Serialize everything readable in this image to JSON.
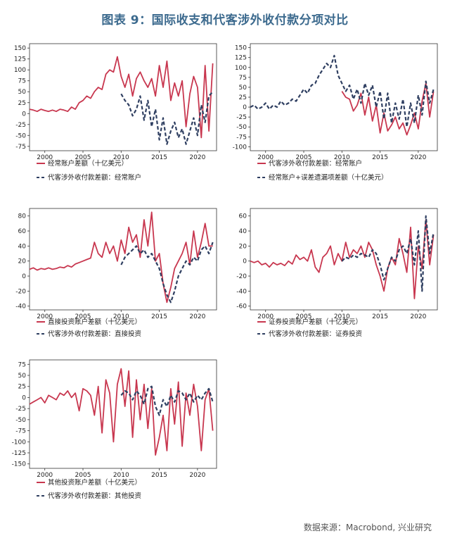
{
  "title": "图表 9：国际收支和代客涉外收付款分项对比",
  "source": "数据来源：Macrobond, 兴业研究",
  "colors": {
    "primary": "#c8374f",
    "secondary": "#2f3f61",
    "title": "#3c6a8e"
  },
  "chart_data": [
    {
      "type": "line",
      "id": "current-account",
      "ylim": [
        -85,
        160
      ],
      "yticks": [
        -75,
        -50,
        -25,
        0,
        25,
        50,
        75,
        100,
        125,
        150
      ],
      "xlim": [
        1998,
        2022.5
      ],
      "xticks": [
        2000,
        2005,
        2010,
        2015,
        2020
      ],
      "series": [
        {
          "name": "经常账户差额（十亿美元）",
          "style": "solid",
          "x": [
            1998,
            1998.5,
            1999,
            1999.5,
            2000,
            2000.5,
            2001,
            2001.5,
            2002,
            2002.5,
            2003,
            2003.5,
            2004,
            2004.5,
            2005,
            2005.5,
            2006,
            2006.5,
            2007,
            2007.5,
            2008,
            2008.5,
            2009,
            2009.5,
            2010,
            2010.5,
            2011,
            2011.5,
            2012,
            2012.5,
            2013,
            2013.5,
            2014,
            2014.5,
            2015,
            2015.5,
            2016,
            2016.5,
            2017,
            2017.5,
            2018,
            2018.5,
            2019,
            2019.5,
            2020,
            2020.5,
            2021,
            2021.5,
            2022
          ],
          "y": [
            10,
            8,
            5,
            10,
            7,
            5,
            8,
            5,
            10,
            8,
            5,
            15,
            10,
            25,
            30,
            40,
            35,
            50,
            60,
            55,
            90,
            100,
            95,
            130,
            85,
            60,
            90,
            40,
            80,
            95,
            75,
            60,
            80,
            40,
            110,
            60,
            120,
            30,
            70,
            40,
            75,
            -30,
            45,
            85,
            60,
            -55,
            110,
            -40,
            115
          ]
        },
        {
          "name": "代客涉外收付款差额：经常账户",
          "style": "dash",
          "x": [
            2010,
            2010.5,
            2011,
            2011.5,
            2012,
            2012.5,
            2013,
            2013.5,
            2014,
            2014.5,
            2015,
            2015.5,
            2016,
            2016.5,
            2017,
            2017.5,
            2018,
            2018.5,
            2019,
            2019.5,
            2020,
            2020.5,
            2021,
            2021.5,
            2022
          ],
          "y": [
            45,
            30,
            20,
            -5,
            10,
            40,
            -15,
            30,
            -30,
            10,
            -60,
            -10,
            -70,
            -40,
            -20,
            -55,
            -35,
            -70,
            -40,
            -10,
            -50,
            20,
            -20,
            40,
            50
          ]
        }
      ]
    },
    {
      "type": "line",
      "id": "current-vs-errors",
      "ylim": [
        -110,
        160
      ],
      "yticks": [
        -100,
        -75,
        -50,
        -25,
        0,
        25,
        50,
        75,
        100,
        125,
        150
      ],
      "xlim": [
        1998,
        2022.5
      ],
      "xticks": [
        2000,
        2005,
        2010,
        2015,
        2020
      ],
      "series": [
        {
          "name": "代客涉外收付款差额：经常账户",
          "style": "solid",
          "x": [
            2010,
            2010.5,
            2011,
            2011.5,
            2012,
            2012.5,
            2013,
            2013.5,
            2014,
            2014.5,
            2015,
            2015.5,
            2016,
            2016.5,
            2017,
            2017.5,
            2018,
            2018.5,
            2019,
            2019.5,
            2020,
            2020.5,
            2021,
            2021.5,
            2022
          ],
          "y": [
            40,
            25,
            20,
            -10,
            5,
            35,
            -20,
            25,
            -35,
            5,
            -65,
            -15,
            -60,
            -45,
            -25,
            -55,
            -40,
            -70,
            -45,
            -15,
            -55,
            15,
            60,
            -25,
            40
          ]
        },
        {
          "name": "经常账户+误差遗漏项差额（十亿美元）",
          "style": "dash",
          "x": [
            1998,
            1998.5,
            1999,
            1999.5,
            2000,
            2000.5,
            2001,
            2001.5,
            2002,
            2002.5,
            2003,
            2003.5,
            2004,
            2004.5,
            2005,
            2005.5,
            2006,
            2006.5,
            2007,
            2007.5,
            2008,
            2008.5,
            2009,
            2009.5,
            2010,
            2010.5,
            2011,
            2011.5,
            2012,
            2012.5,
            2013,
            2013.5,
            2014,
            2014.5,
            2015,
            2015.5,
            2016,
            2016.5,
            2017,
            2017.5,
            2018,
            2018.5,
            2019,
            2019.5,
            2020,
            2020.5,
            2021,
            2021.5,
            2022
          ],
          "y": [
            0,
            5,
            -5,
            0,
            10,
            -5,
            5,
            0,
            15,
            5,
            10,
            20,
            15,
            30,
            45,
            35,
            55,
            60,
            80,
            95,
            110,
            100,
            130,
            80,
            60,
            40,
            55,
            20,
            45,
            10,
            60,
            30,
            55,
            0,
            40,
            -30,
            35,
            -40,
            10,
            -30,
            20,
            -50,
            10,
            -40,
            30,
            -20,
            65,
            10,
            45
          ]
        }
      ]
    },
    {
      "type": "line",
      "id": "direct-investment",
      "ylim": [
        -45,
        90
      ],
      "yticks": [
        -40,
        -20,
        0,
        20,
        40,
        60,
        80
      ],
      "xlim": [
        1998,
        2022.5
      ],
      "xticks": [
        2000,
        2005,
        2010,
        2015,
        2020
      ],
      "series": [
        {
          "name": "直接投资账户差额（十亿美元）",
          "style": "solid",
          "x": [
            1998,
            1998.5,
            1999,
            1999.5,
            2000,
            2000.5,
            2001,
            2001.5,
            2002,
            2002.5,
            2003,
            2003.5,
            2004,
            2004.5,
            2005,
            2005.5,
            2006,
            2006.5,
            2007,
            2007.5,
            2008,
            2008.5,
            2009,
            2009.5,
            2010,
            2010.5,
            2011,
            2011.5,
            2012,
            2012.5,
            2013,
            2013.5,
            2014,
            2014.5,
            2015,
            2015.5,
            2016,
            2016.5,
            2017,
            2017.5,
            2018,
            2018.5,
            2019,
            2019.5,
            2020,
            2020.5,
            2021,
            2021.5,
            2022
          ],
          "y": [
            9,
            11,
            8,
            10,
            9,
            11,
            9,
            10,
            12,
            11,
            14,
            12,
            16,
            18,
            20,
            22,
            24,
            45,
            30,
            25,
            45,
            30,
            40,
            20,
            48,
            30,
            65,
            45,
            55,
            25,
            75,
            40,
            85,
            20,
            30,
            -10,
            -35,
            -15,
            10,
            20,
            30,
            45,
            15,
            60,
            25,
            45,
            70,
            40,
            40
          ]
        },
        {
          "name": "代客涉外收付款差额：直接投资",
          "style": "dash",
          "x": [
            2010,
            2010.5,
            2011,
            2011.5,
            2012,
            2012.5,
            2013,
            2013.5,
            2014,
            2014.5,
            2015,
            2015.5,
            2016,
            2016.5,
            2017,
            2017.5,
            2018,
            2018.5,
            2019,
            2019.5,
            2020,
            2020.5,
            2021,
            2021.5,
            2022
          ],
          "y": [
            15,
            25,
            30,
            35,
            40,
            30,
            35,
            25,
            30,
            20,
            10,
            -10,
            -25,
            -35,
            -20,
            0,
            10,
            20,
            15,
            25,
            20,
            35,
            40,
            30,
            45
          ]
        }
      ]
    },
    {
      "type": "line",
      "id": "portfolio-investment",
      "ylim": [
        -65,
        70
      ],
      "yticks": [
        -60,
        -40,
        -20,
        0,
        20,
        40,
        60
      ],
      "xlim": [
        1998,
        2022.5
      ],
      "xticks": [
        2000,
        2005,
        2010,
        2015,
        2020
      ],
      "series": [
        {
          "name": "证券投资账户差额（十亿美元）",
          "style": "solid",
          "x": [
            1998,
            1998.5,
            1999,
            1999.5,
            2000,
            2000.5,
            2001,
            2001.5,
            2002,
            2002.5,
            2003,
            2003.5,
            2004,
            2004.5,
            2005,
            2005.5,
            2006,
            2006.5,
            2007,
            2007.5,
            2008,
            2008.5,
            2009,
            2009.5,
            2010,
            2010.5,
            2011,
            2011.5,
            2012,
            2012.5,
            2013,
            2013.5,
            2014,
            2014.5,
            2015,
            2015.5,
            2016,
            2016.5,
            2017,
            2017.5,
            2018,
            2018.5,
            2019,
            2019.5,
            2020,
            2020.5,
            2021,
            2021.5,
            2022
          ],
          "y": [
            0,
            -2,
            0,
            -5,
            -3,
            -8,
            -2,
            -5,
            -3,
            -6,
            0,
            -4,
            8,
            2,
            5,
            0,
            15,
            -8,
            -15,
            5,
            10,
            20,
            -5,
            10,
            0,
            25,
            5,
            15,
            10,
            20,
            5,
            25,
            15,
            -5,
            -20,
            -40,
            -10,
            5,
            -5,
            30,
            10,
            -15,
            45,
            -50,
            20,
            -10,
            55,
            -5,
            35
          ]
        },
        {
          "name": "代客涉外收付款差额：证券投资",
          "style": "dash",
          "x": [
            2010,
            2010.5,
            2011,
            2011.5,
            2012,
            2012.5,
            2013,
            2013.5,
            2014,
            2014.5,
            2015,
            2015.5,
            2016,
            2016.5,
            2017,
            2017.5,
            2018,
            2018.5,
            2019,
            2019.5,
            2020,
            2020.5,
            2021,
            2021.5,
            2022
          ],
          "y": [
            0,
            5,
            3,
            8,
            5,
            10,
            8,
            5,
            15,
            10,
            -5,
            -25,
            -10,
            5,
            0,
            15,
            20,
            10,
            30,
            -5,
            40,
            -40,
            60,
            10,
            38
          ]
        }
      ]
    },
    {
      "type": "line",
      "id": "other-investment",
      "ylim": [
        -160,
        85
      ],
      "yticks": [
        -150,
        -125,
        -100,
        -75,
        -50,
        -25,
        0,
        25,
        50,
        75
      ],
      "xlim": [
        1998,
        2022.5
      ],
      "xticks": [
        2000,
        2005,
        2010,
        2015,
        2020
      ],
      "series": [
        {
          "name": "其他投资账户差额（十亿美元）",
          "style": "solid",
          "x": [
            1998,
            1998.5,
            1999,
            1999.5,
            2000,
            2000.5,
            2001,
            2001.5,
            2002,
            2002.5,
            2003,
            2003.5,
            2004,
            2004.5,
            2005,
            2005.5,
            2006,
            2006.5,
            2007,
            2007.5,
            2008,
            2008.5,
            2009,
            2009.5,
            2010,
            2010.5,
            2011,
            2011.5,
            2012,
            2012.5,
            2013,
            2013.5,
            2014,
            2014.5,
            2015,
            2015.5,
            2016,
            2016.5,
            2017,
            2017.5,
            2018,
            2018.5,
            2019,
            2019.5,
            2020,
            2020.5,
            2021,
            2021.5,
            2022
          ],
          "y": [
            -15,
            -10,
            -5,
            0,
            -12,
            5,
            0,
            -5,
            10,
            5,
            15,
            0,
            10,
            -30,
            20,
            15,
            5,
            -40,
            25,
            -80,
            40,
            10,
            -100,
            30,
            65,
            -20,
            60,
            -90,
            40,
            -50,
            30,
            -70,
            20,
            -130,
            -90,
            -40,
            -120,
            20,
            -60,
            35,
            -110,
            10,
            -40,
            30,
            -20,
            -120,
            -5,
            20,
            -75
          ]
        },
        {
          "name": "代客涉外收付款差额：其他投资",
          "style": "dash",
          "x": [
            2010,
            2010.5,
            2011,
            2011.5,
            2012,
            2012.5,
            2013,
            2013.5,
            2014,
            2014.5,
            2015,
            2015.5,
            2016,
            2016.5,
            2017,
            2017.5,
            2018,
            2018.5,
            2019,
            2019.5,
            2020,
            2020.5,
            2021,
            2021.5,
            2022
          ],
          "y": [
            5,
            15,
            10,
            -5,
            15,
            5,
            -15,
            20,
            25,
            -20,
            -40,
            -5,
            -20,
            5,
            -10,
            15,
            10,
            -5,
            10,
            -10,
            5,
            -5,
            10,
            20,
            -10
          ]
        }
      ]
    }
  ]
}
